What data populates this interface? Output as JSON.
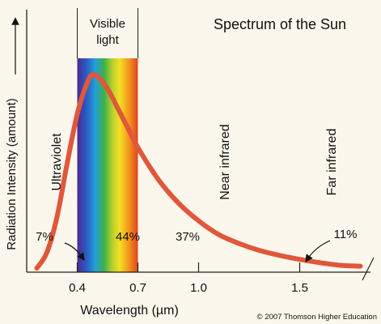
{
  "chart_data": {
    "type": "line",
    "title": "Spectrum of the Sun",
    "xlabel": "Wavelength (µm)",
    "ylabel": "Radiation Intensity (amount)",
    "x_ticks": [
      "0.4",
      "0.7",
      "1.0",
      "1.5"
    ],
    "x_tick_values": [
      0.4,
      0.7,
      1.0,
      1.5
    ],
    "xlim": [
      0.15,
      1.85
    ],
    "ylim": [
      0,
      1
    ],
    "grid": false,
    "y_axis_ticks": false,
    "visible_band": {
      "label": "Visible light",
      "from": 0.4,
      "to": 0.7
    },
    "series": [
      {
        "color": "#e0573a",
        "x": [
          0.2,
          0.25,
          0.3,
          0.35,
          0.4,
          0.45,
          0.48,
          0.52,
          0.56,
          0.6,
          0.65,
          0.7,
          0.8,
          0.9,
          1.0,
          1.1,
          1.2,
          1.3,
          1.4,
          1.5,
          1.6,
          1.7,
          1.8
        ],
        "y": [
          0.02,
          0.1,
          0.28,
          0.55,
          0.8,
          0.96,
          1.0,
          0.97,
          0.91,
          0.83,
          0.73,
          0.63,
          0.47,
          0.35,
          0.26,
          0.19,
          0.145,
          0.11,
          0.085,
          0.065,
          0.048,
          0.035,
          0.03
        ]
      }
    ],
    "regions": [
      {
        "name": "Ultraviolet",
        "percent": "7%"
      },
      {
        "name": "Visible",
        "percent": "44%"
      },
      {
        "name": "Near infrared",
        "percent": "37%"
      },
      {
        "name": "Far infrared",
        "percent": "11%"
      }
    ],
    "credit": "© 2007 Thomson Higher Education"
  }
}
